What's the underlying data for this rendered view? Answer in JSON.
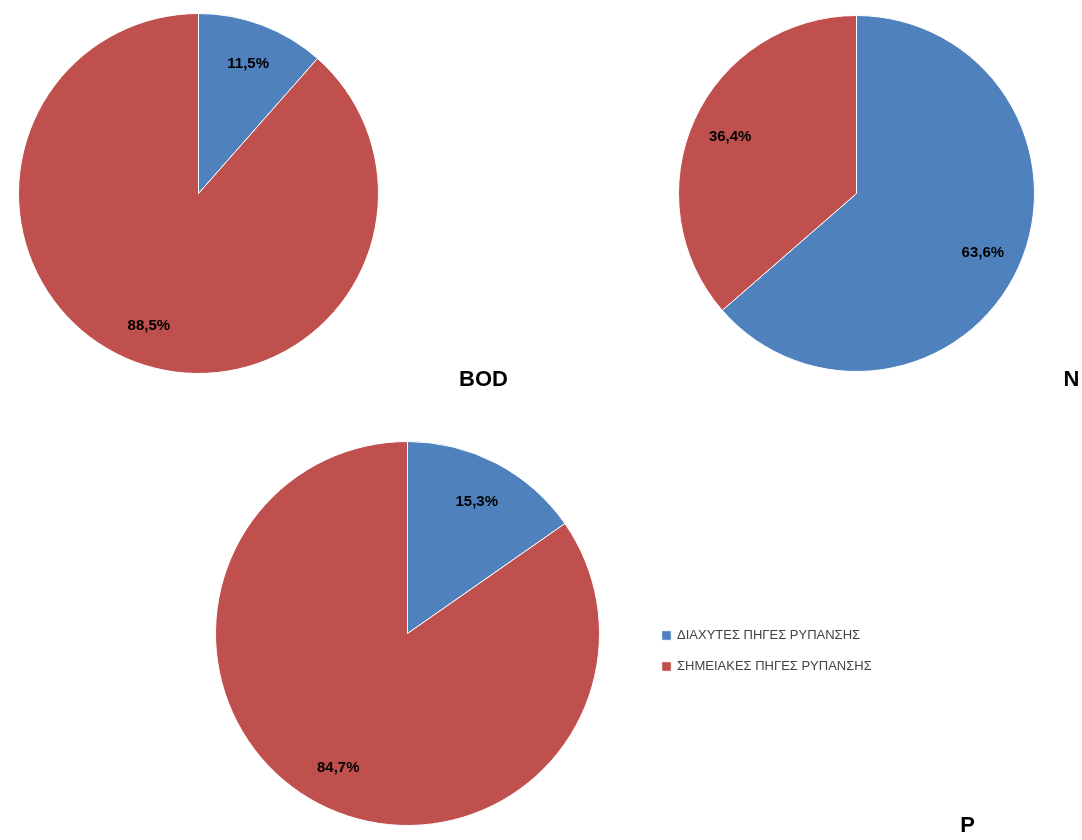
{
  "chart_data": [
    {
      "type": "pie",
      "title": "BOD",
      "categories": [
        null,
        null
      ],
      "values": [
        11.5,
        88.5
      ],
      "colors": [
        "#4f81bd",
        "#c0504d"
      ],
      "value_labels": [
        "11,5%",
        "88,5%"
      ],
      "legend": false
    },
    {
      "type": "pie",
      "title": "N",
      "categories": [
        null,
        null
      ],
      "values": [
        63.6,
        36.4
      ],
      "colors": [
        "#4f81bd",
        "#c0504d"
      ],
      "value_labels": [
        "63,6%",
        "36,4%"
      ],
      "legend": false
    },
    {
      "type": "pie",
      "title": "P",
      "categories": [
        "ΔΙΑΧΥΤΕΣ ΠΗΓΕΣ ΡΥΠΑΝΣΗΣ",
        "ΣΗΜΕΙΑΚΕΣ ΠΗΓΕΣ ΡΥΠΑΝΣΗΣ"
      ],
      "values": [
        15.3,
        84.7
      ],
      "colors": [
        "#4f81bd",
        "#c0504d"
      ],
      "value_labels": [
        "15,3%",
        "84,7%"
      ],
      "legend": "right"
    }
  ]
}
